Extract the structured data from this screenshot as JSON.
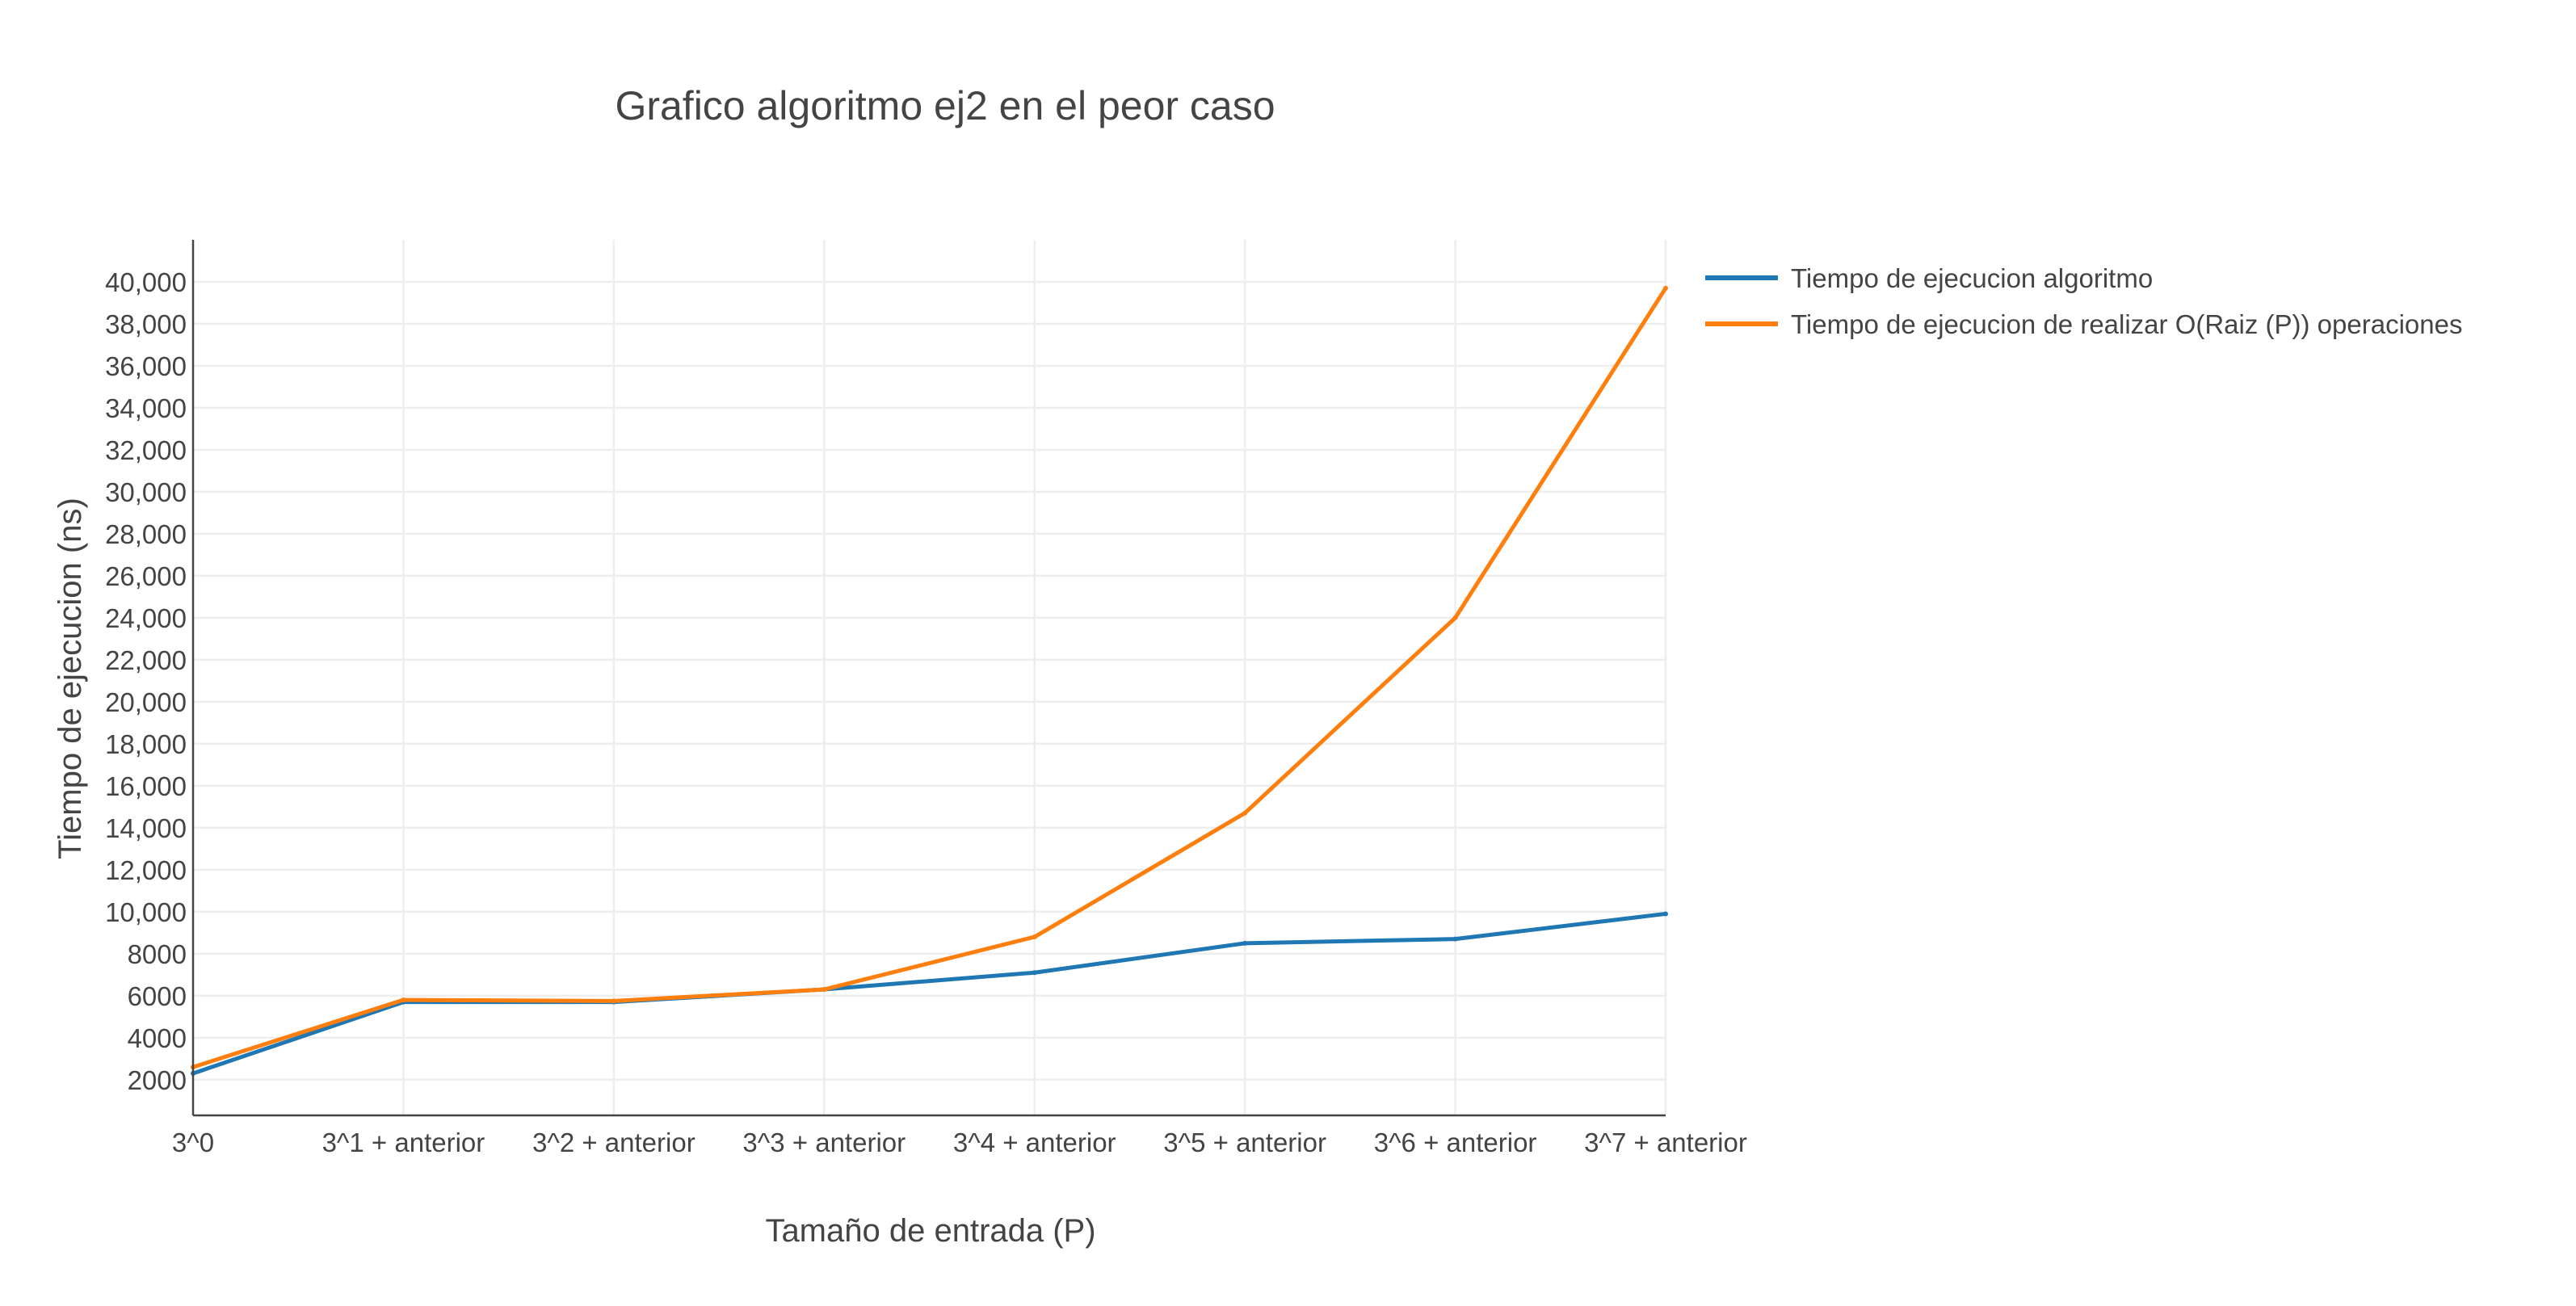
{
  "chart_data": {
    "type": "line",
    "title": "Grafico algoritmo ej2 en el peor caso",
    "xlabel": "Tamaño de entrada (P)",
    "ylabel": "Tiempo de ejecucion (ns)",
    "categories": [
      "3^0",
      "3^1 + anterior",
      "3^2 + anterior",
      "3^3 + anterior",
      "3^4 + anterior",
      "3^5 + anterior",
      "3^6 + anterior",
      "3^7 + anterior"
    ],
    "ylim": [
      300,
      42000
    ],
    "yticks": [
      2000,
      4000,
      6000,
      8000,
      10000,
      12000,
      14000,
      16000,
      18000,
      20000,
      22000,
      24000,
      26000,
      28000,
      30000,
      32000,
      34000,
      36000,
      38000,
      40000
    ],
    "ytick_labels": [
      "2000",
      "4000",
      "6000",
      "8000",
      "10,000",
      "12,000",
      "14,000",
      "16,000",
      "18,000",
      "20,000",
      "22,000",
      "24,000",
      "26,000",
      "28,000",
      "30,000",
      "32,000",
      "34,000",
      "36,000",
      "38,000",
      "40,000"
    ],
    "grid": true,
    "legend_position": "top-right",
    "series": [
      {
        "name": "Tiempo de ejecucion algoritmo",
        "color": "#1f77b4",
        "values": [
          2300,
          5700,
          5700,
          6300,
          7100,
          8500,
          8700,
          9900
        ]
      },
      {
        "name": "Tiempo de ejecucion de realizar O(Raiz (P)) operaciones",
        "color": "#ff7f0e",
        "values": [
          2600,
          5800,
          5750,
          6300,
          8800,
          14700,
          24000,
          39700
        ]
      }
    ]
  }
}
